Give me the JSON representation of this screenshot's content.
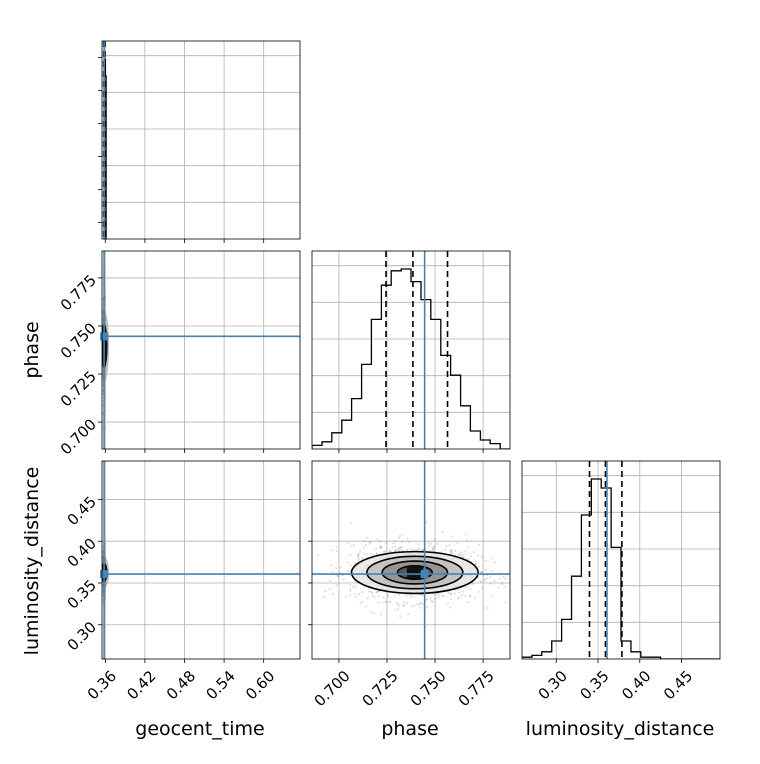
{
  "chart_data": {
    "type": "corner",
    "parameters": [
      "geocent_time",
      "phase",
      "luminosity_distance"
    ],
    "axis_labels": {
      "geocent_time": "geocent_time",
      "phase": "phase",
      "luminosity_distance": "luminosity_distance"
    },
    "ranges": {
      "geocent_time": [
        0.355,
        0.655
      ],
      "phase": [
        0.686,
        0.789
      ],
      "luminosity_distance": [
        0.259,
        0.496
      ]
    },
    "ticks": {
      "geocent_time": [
        "0.36",
        "0.42",
        "0.48",
        "0.54",
        "0.60"
      ],
      "phase": [
        "0.700",
        "0.725",
        "0.750",
        "0.775"
      ],
      "luminosity_distance": [
        "0.30",
        "0.35",
        "0.40",
        "0.45"
      ]
    },
    "truths": {
      "geocent_time": 0.3582,
      "phase": 0.7446,
      "luminosity_distance": 0.3607
    },
    "quantiles": {
      "geocent_time": [
        0.3575,
        0.3585,
        0.3595
      ],
      "phase": [
        0.7245,
        0.7385,
        0.7565
      ],
      "luminosity_distance": [
        0.3398,
        0.3589,
        0.3786
      ]
    },
    "histograms": {
      "geocent_time": {
        "edges": [
          0.3582,
          0.3592,
          0.3602,
          0.3612,
          0.3622
        ],
        "counts": [
          0.995,
          1.0,
          0.905,
          0.0
        ]
      },
      "phase": {
        "edges": [
          0.686,
          0.6912,
          0.6963,
          0.7015,
          0.7066,
          0.7118,
          0.7169,
          0.7221,
          0.7272,
          0.7324,
          0.7375,
          0.7427,
          0.7478,
          0.753,
          0.7581,
          0.7633,
          0.7684,
          0.7736,
          0.7787,
          0.7839,
          0.789
        ],
        "counts": [
          0.02,
          0.04,
          0.09,
          0.16,
          0.28,
          0.47,
          0.72,
          0.91,
          0.99,
          1.0,
          0.93,
          0.83,
          0.72,
          0.52,
          0.41,
          0.24,
          0.1,
          0.05,
          0.03,
          0.0
        ]
      },
      "luminosity_distance": {
        "edges": [
          0.259,
          0.2709,
          0.2827,
          0.2946,
          0.3064,
          0.3183,
          0.3301,
          0.342,
          0.3538,
          0.3657,
          0.3775,
          0.3894,
          0.4012,
          0.4131,
          0.4249,
          0.4368,
          0.4486,
          0.4605,
          0.4723,
          0.4842,
          0.496
        ],
        "counts": [
          0.01,
          0.02,
          0.04,
          0.1,
          0.22,
          0.46,
          0.8,
          1.0,
          0.95,
          0.62,
          0.1,
          0.04,
          0.01,
          0.01,
          0.0,
          0.0,
          0.0,
          0.0,
          0.0,
          0.0
        ]
      }
    },
    "contours": {
      "phase_vs_luminosity_distance": {
        "center": [
          0.7395,
          0.3625
        ],
        "sigma": [
          0.0145,
          0.0145
        ],
        "levels_sigma": [
          0.5,
          1.0,
          1.5,
          2.0
        ]
      },
      "geocent_time_vs_phase": {
        "center": [
          0.3582,
          0.7395
        ],
        "sigma": [
          0.0007,
          0.0145
        ]
      },
      "geocent_time_vs_luminosity_distance": {
        "center": [
          0.3582,
          0.3625
        ],
        "sigma": [
          0.0007,
          0.0145
        ]
      }
    },
    "grid": true,
    "colors": {
      "truth": "#4682b4",
      "histogram": "#000000",
      "quantile": "#000000",
      "grid": "#b0b0b0",
      "scatter": "#7f7f7f"
    }
  }
}
